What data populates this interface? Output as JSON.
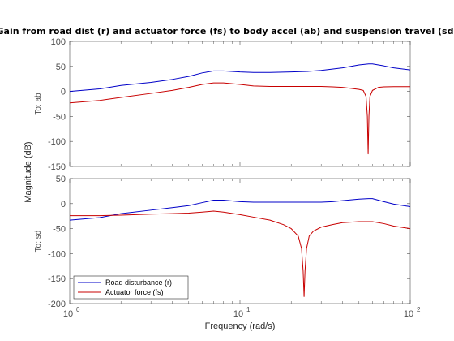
{
  "chart_data": {
    "type": "line",
    "title": "Gain from road dist (r) and actuator force (fs) to body accel (ab) and suspension travel (sd)",
    "xlabel": "Frequency  (rad/s)",
    "ylabel": "Magnitude (dB)",
    "xscale": "log",
    "xlim": [
      1,
      100
    ],
    "x_ticks": [
      1,
      10,
      100
    ],
    "x_tick_labels": [
      "10",
      "10",
      "10"
    ],
    "x_tick_exponents": [
      "0",
      "1",
      "2"
    ],
    "legend": {
      "placement": "bottom-left",
      "panel": "bottom"
    },
    "colors": {
      "road": "#0000c8",
      "actuator": "#c80000",
      "axes": "#4d4d4d",
      "grid": "#d9d9d9"
    },
    "panels": [
      {
        "label": "To: ab",
        "ylim": [
          -150,
          100
        ],
        "yticks": [
          -150,
          -100,
          -50,
          0,
          50,
          100
        ],
        "series": [
          {
            "name": "Road disturbance (r)",
            "color": "#0000c8",
            "points": [
              [
                1,
                0
              ],
              [
                1.5,
                5
              ],
              [
                2,
                12
              ],
              [
                3,
                18
              ],
              [
                4,
                24
              ],
              [
                5,
                30
              ],
              [
                6,
                37
              ],
              [
                7,
                41
              ],
              [
                8,
                41
              ],
              [
                10,
                39
              ],
              [
                12,
                38
              ],
              [
                15,
                38
              ],
              [
                20,
                39
              ],
              [
                25,
                40
              ],
              [
                30,
                42
              ],
              [
                40,
                47
              ],
              [
                50,
                53
              ],
              [
                57,
                55
              ],
              [
                60,
                55
              ],
              [
                70,
                51
              ],
              [
                80,
                47
              ],
              [
                100,
                43
              ]
            ]
          },
          {
            "name": "Actuator force (fs)",
            "color": "#c80000",
            "points": [
              [
                1,
                -23
              ],
              [
                1.5,
                -18
              ],
              [
                2,
                -12
              ],
              [
                3,
                -4
              ],
              [
                4,
                2
              ],
              [
                5,
                8
              ],
              [
                6,
                14
              ],
              [
                7,
                17
              ],
              [
                8,
                17
              ],
              [
                10,
                14
              ],
              [
                12,
                11
              ],
              [
                15,
                10
              ],
              [
                20,
                10
              ],
              [
                25,
                10
              ],
              [
                30,
                10
              ],
              [
                35,
                9
              ],
              [
                40,
                8
              ],
              [
                45,
                6
              ],
              [
                50,
                4
              ],
              [
                53,
                2
              ],
              [
                55,
                -10
              ],
              [
                56,
                -50
              ],
              [
                56.6,
                -125
              ],
              [
                57.2,
                -50
              ],
              [
                58,
                -10
              ],
              [
                60,
                2
              ],
              [
                65,
                8
              ],
              [
                70,
                9
              ],
              [
                80,
                9.5
              ],
              [
                100,
                9.5
              ]
            ]
          }
        ]
      },
      {
        "label": "To: sd",
        "ylim": [
          -200,
          50
        ],
        "yticks": [
          -200,
          -150,
          -100,
          -50,
          0,
          50
        ],
        "series": [
          {
            "name": "Road disturbance (r)",
            "color": "#0000c8",
            "points": [
              [
                1,
                -33
              ],
              [
                1.5,
                -28
              ],
              [
                2,
                -20
              ],
              [
                3,
                -13
              ],
              [
                4,
                -8
              ],
              [
                5,
                -4
              ],
              [
                6,
                2
              ],
              [
                7,
                7
              ],
              [
                8,
                7
              ],
              [
                10,
                4
              ],
              [
                12,
                3
              ],
              [
                15,
                3
              ],
              [
                20,
                3
              ],
              [
                25,
                3
              ],
              [
                30,
                3
              ],
              [
                35,
                4
              ],
              [
                40,
                6
              ],
              [
                50,
                9
              ],
              [
                57,
                10
              ],
              [
                60,
                10
              ],
              [
                70,
                4
              ],
              [
                80,
                -1
              ],
              [
                100,
                -6
              ]
            ]
          },
          {
            "name": "Actuator force (fs)",
            "color": "#c80000",
            "points": [
              [
                1,
                -24
              ],
              [
                1.5,
                -24
              ],
              [
                2,
                -23
              ],
              [
                3,
                -21
              ],
              [
                4,
                -20
              ],
              [
                5,
                -19
              ],
              [
                6,
                -17
              ],
              [
                7,
                -15
              ],
              [
                8,
                -17
              ],
              [
                10,
                -22
              ],
              [
                12,
                -27
              ],
              [
                15,
                -33
              ],
              [
                18,
                -42
              ],
              [
                20,
                -50
              ],
              [
                22,
                -65
              ],
              [
                23,
                -90
              ],
              [
                23.5,
                -135
              ],
              [
                23.8,
                -186
              ],
              [
                24.1,
                -135
              ],
              [
                24.6,
                -90
              ],
              [
                25.5,
                -65
              ],
              [
                27,
                -55
              ],
              [
                30,
                -47
              ],
              [
                35,
                -42
              ],
              [
                40,
                -38
              ],
              [
                50,
                -36
              ],
              [
                60,
                -36
              ],
              [
                70,
                -40
              ],
              [
                80,
                -45
              ],
              [
                100,
                -50
              ]
            ]
          }
        ]
      }
    ]
  }
}
